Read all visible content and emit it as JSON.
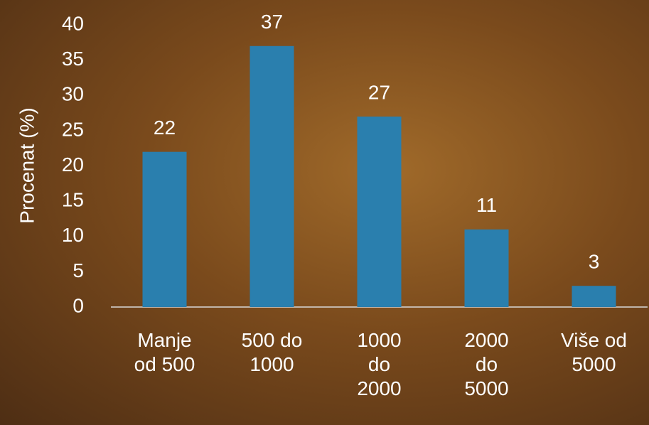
{
  "chart_data": {
    "type": "bar",
    "y_label": "Procenat (%)",
    "categories": [
      "Manje\nod 500",
      "500 do\n1000",
      "1000\ndo\n2000",
      "2000\ndo\n5000",
      "Više od\n5000"
    ],
    "values": [
      22,
      37,
      27,
      11,
      3
    ],
    "color": "#2a7fae",
    "ylim": [
      0,
      40
    ],
    "yticks": [
      0,
      5,
      10,
      15,
      20,
      25,
      30,
      35,
      40
    ],
    "grid": false
  }
}
